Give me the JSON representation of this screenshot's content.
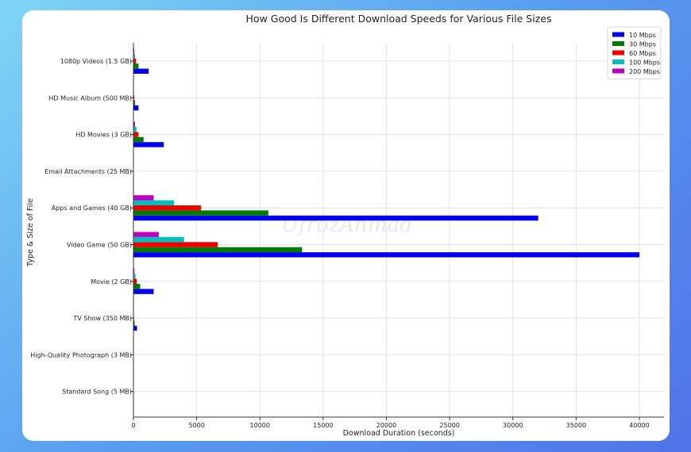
{
  "chart_data": {
    "type": "bar",
    "orientation": "horizontal",
    "title": "How Good Is Different Download Speeds for Various File Sizes",
    "xlabel": "Download Duration (seconds)",
    "ylabel": "Type & Size of File",
    "xlim": [
      0,
      42000
    ],
    "xticks": [
      0,
      5000,
      10000,
      15000,
      20000,
      25000,
      30000,
      35000,
      40000
    ],
    "grid": true,
    "legend_position": "top-right",
    "watermark": "UfrozAhmad",
    "categories": [
      "1080p Videos (1.5 GB)",
      "HD Music Album (500 MB)",
      "HD Movies (3 GB)",
      "Email Attachments (25 MB)",
      "Apps and Games (40 GB)",
      "Video Game (50 GB)",
      "Movie (2 GB)",
      "TV Show (350 MB)",
      "High-Quality Photograph (3 MB)",
      "Standard Song (5 MB)"
    ],
    "series": [
      {
        "name": "10 Mbps",
        "color": "#0000ee",
        "values": [
          1200,
          400,
          2400,
          20,
          32000,
          40000,
          1600,
          280,
          2.4,
          4
        ]
      },
      {
        "name": "30 Mbps",
        "color": "#007a00",
        "values": [
          400,
          133,
          800,
          7,
          10667,
          13333,
          533,
          93,
          0.8,
          1.3
        ]
      },
      {
        "name": "60 Mbps",
        "color": "#ee0000",
        "values": [
          200,
          67,
          400,
          3,
          5333,
          6667,
          267,
          47,
          0.4,
          0.7
        ]
      },
      {
        "name": "100 Mbps",
        "color": "#00bfbf",
        "values": [
          120,
          40,
          240,
          2,
          3200,
          4000,
          160,
          28,
          0.24,
          0.4
        ]
      },
      {
        "name": "200 Mbps",
        "color": "#bf00bf",
        "values": [
          60,
          20,
          120,
          1,
          1600,
          2000,
          80,
          14,
          0.12,
          0.2
        ]
      }
    ]
  }
}
